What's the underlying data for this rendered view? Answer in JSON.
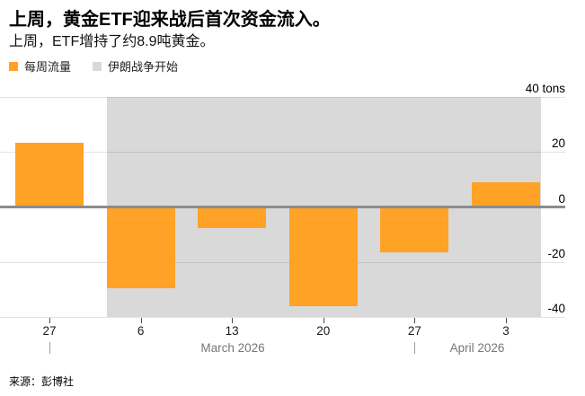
{
  "header": {
    "title": "上周，黄金ETF迎来战后首次资金流入。",
    "subtitle": "上周，ETF增持了约8.9吨黄金。"
  },
  "legend": {
    "items": [
      {
        "label": "每周流量",
        "color": "#FFA226"
      },
      {
        "label": "伊朗战争开始",
        "color": "#D9D9D9"
      }
    ]
  },
  "chart_data": {
    "type": "bar",
    "title": "上周，黄金ETF迎来战后首次资金流入。",
    "subtitle": "上周，ETF增持了约8.9吨黄金。",
    "unit": "tons",
    "categories": [
      "Feb 27",
      "Mar 6",
      "Mar 13",
      "Mar 20",
      "Mar 27",
      "Apr 3"
    ],
    "x_tick_labels": [
      "27",
      "6",
      "13",
      "20",
      "27",
      "3"
    ],
    "series": [
      {
        "name": "每周流量",
        "color": "#FFA226",
        "values": [
          23.5,
          -29.5,
          -7.8,
          -36,
          -16.5,
          8.9
        ]
      }
    ],
    "y_ticks": [
      {
        "value": 40,
        "label": "40 tons"
      },
      {
        "value": 20,
        "label": "20"
      },
      {
        "value": 0,
        "label": "0"
      },
      {
        "value": -20,
        "label": "-20"
      },
      {
        "value": -40,
        "label": "-40"
      }
    ],
    "ylim": [
      -40,
      40
    ],
    "months": [
      {
        "label": "March 2026"
      },
      {
        "label": "April 2026"
      }
    ],
    "event_band": {
      "label": "伊朗战争开始",
      "color": "#D9D9D9",
      "starts_at_category_index": 0.63,
      "ends_at_category_index": 5.38
    },
    "grid": true,
    "zero_line": true,
    "legend_position": "top-left"
  },
  "footer": {
    "source": "来源：彭博社"
  },
  "colors": {
    "bar": "#FFA226",
    "band": "#D9D9D9",
    "zero_line": "#8C8C8C",
    "month_text": "#767676",
    "tick_text": "#1A1A1A"
  }
}
